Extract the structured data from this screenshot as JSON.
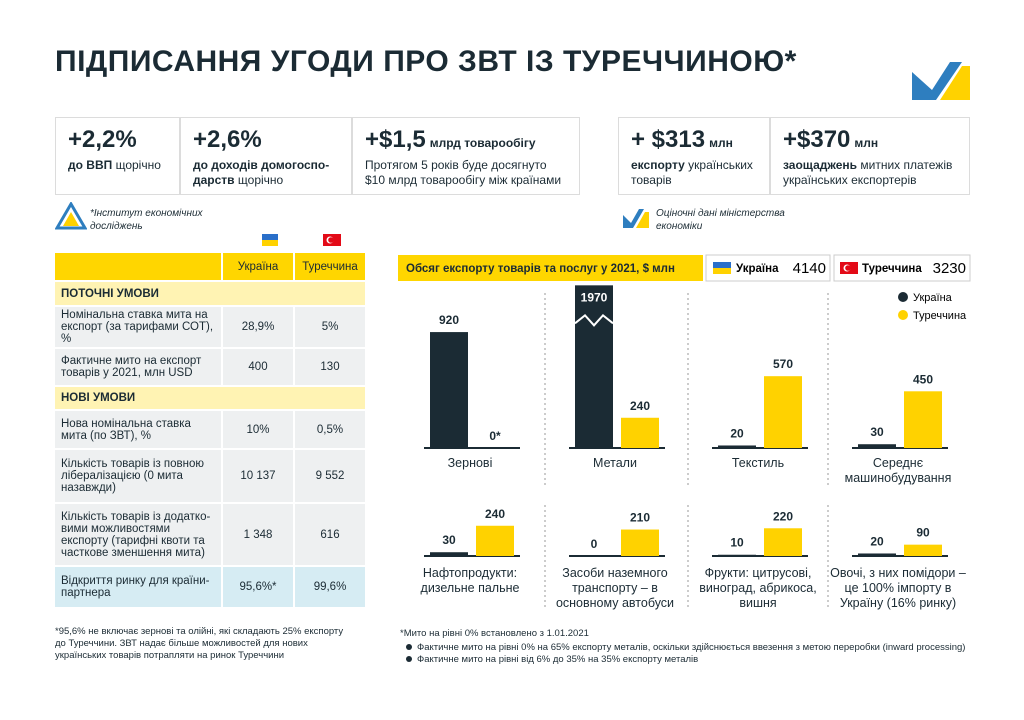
{
  "title": "ПІДПИСАННЯ УГОДИ ПРО ЗВТ ІЗ ТУРЕЧЧИНОЮ*",
  "stats": [
    {
      "value": "+2,2%",
      "bold": "до ВВП",
      "text": "щорічно"
    },
    {
      "value": "+2,6%",
      "bold": "до доходів домогоспо-дарств",
      "text": "щорічно"
    },
    {
      "value": "+$1,5",
      "unit": "млрд товарообігу",
      "text": "Протягом 5 років буде досягнуто $10 млрд товарообігу між країнами"
    },
    {
      "value": "+ $313",
      "unit": "млн",
      "bold": "експорту",
      "text": "українських товарів"
    },
    {
      "value": "+$370",
      "unit": "млн",
      "bold": "заощаджень",
      "text": "митних платежів українських експортерів"
    }
  ],
  "sources": [
    "*Інститут економічних досліджень",
    "Оціночні дані міністерства економіки"
  ],
  "table": {
    "header": [
      "Україна",
      "Туреччина"
    ],
    "rows": [
      [
        "ПОТОЧНІ УМОВИ"
      ],
      [
        "Номінальна ставка мита на експорт (за тарифами СОТ), %",
        "28,9%",
        "5%"
      ],
      [
        "Фактичне мито на експорт товарів у 2021, млн USD",
        "400",
        "130"
      ],
      [
        "НОВІ УМОВИ"
      ],
      [
        "Нова номінальна ставка мита (по ЗВТ), %",
        "10%",
        "0,5%"
      ],
      [
        "Кількість товарів із повною лібералізацією (0 мита назавжди)",
        "10 137",
        "9 552"
      ],
      [
        "Кількість товарів із додатко-вими можливостями експорту (тарифні квоти та часткове зменшення мита)",
        "1 348",
        "616"
      ],
      [
        "Відкриття ринку для країни-партнера",
        "95,6%*",
        "99,6%"
      ]
    ],
    "footnote": "*95,6% не включає зернові та олійні, які складають 25% експорту до Туреччини. ЗВТ надає більше можливостей для нових українських товарів потрапляти на ринок Туреччини"
  },
  "chart_data": {
    "type": "bar",
    "title": "Обсяг експорту товарів та послуг у 2021, $ млн",
    "totals": [
      4140,
      3230
    ],
    "categories": [
      "Зернові",
      "Метали",
      "Текстиль",
      "Середнє машинобудування",
      "Нафтопродукти: дизельне пальне",
      "Засоби наземного транспорту – в основному автобуси",
      "Фрукти: цитрусові, виноград, абрикоса, вишня",
      "Овочі, з них помідори – це 100% імпорту в Україну (16% ринку)"
    ],
    "series": [
      {
        "name": "Україна",
        "color": "#1b2b34",
        "values": [
          920,
          1970,
          20,
          30,
          30,
          0,
          10,
          20
        ]
      },
      {
        "name": "Туреччина",
        "color": "#ffd200",
        "values": [
          0,
          240,
          570,
          450,
          240,
          210,
          220,
          90
        ],
        "value_labels": [
          "0*",
          "240",
          "570",
          "450",
          "240",
          "210",
          "220",
          "90"
        ]
      }
    ],
    "legend": "upper right",
    "notes": [
      "*Мито на рівні 0% встановлено з 1.01.2021",
      "Фактичне мито на рівні 0% на 65% експорту металів, оскільки здійснюється ввезення з метою переробки (inward processing)",
      "Фактичне мито на рівні від 6% до 35% на 35% експорту металів"
    ]
  }
}
